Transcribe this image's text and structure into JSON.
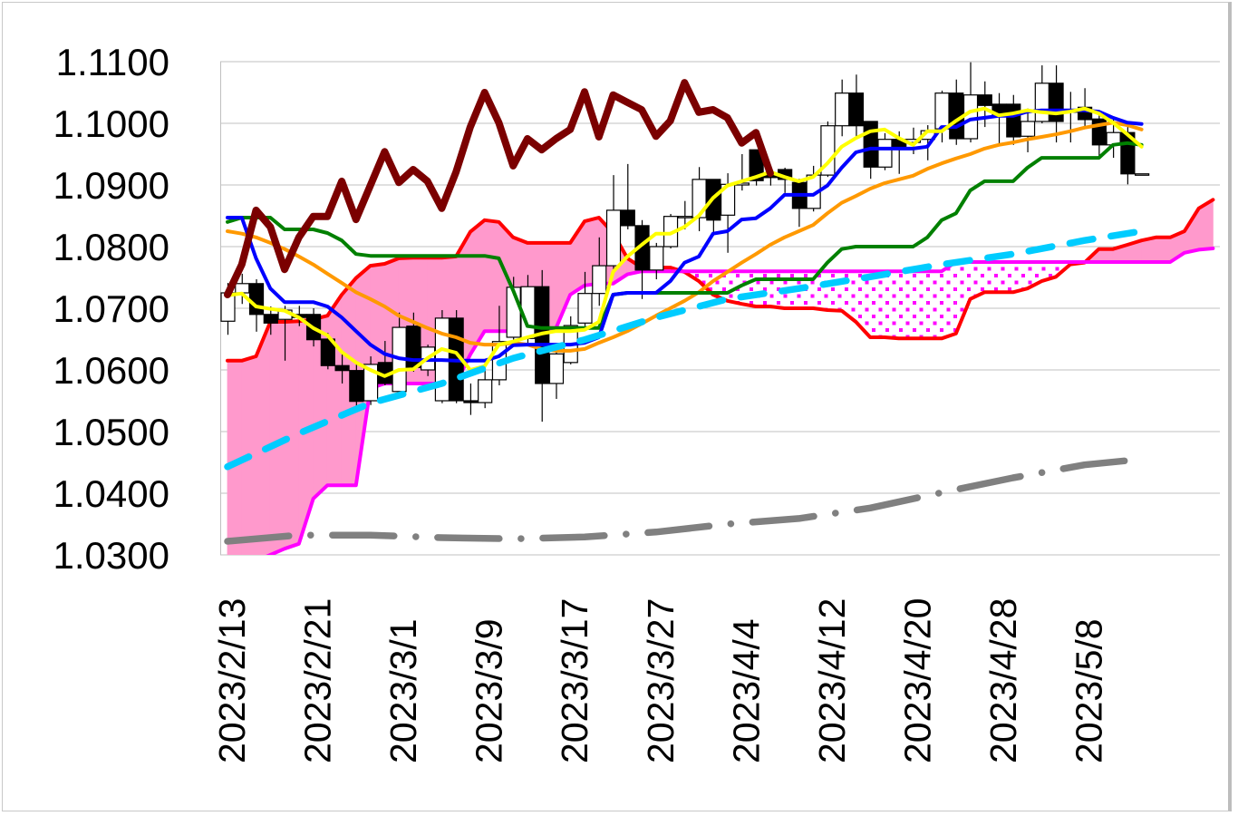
{
  "chart_data": {
    "type": "candlestick",
    "title": "",
    "xlabel": "",
    "ylabel": "",
    "ylim": [
      1.03,
      1.11
    ],
    "y_tick_step": 0.01,
    "y_tick_labels": [
      "1.1100",
      "1.1000",
      "1.0900",
      "1.0800",
      "1.0700",
      "1.0600",
      "1.0500",
      "1.0400",
      "1.0300"
    ],
    "x_tick_labels": [
      "2023/2/13",
      "2023/2/21",
      "2023/3/1",
      "2023/3/9",
      "2023/3/17",
      "2023/3/27",
      "2023/4/4",
      "2023/4/12",
      "2023/4/20",
      "2023/4/28",
      "2023/5/8"
    ],
    "x_tick_index": [
      0,
      6,
      12,
      18,
      24,
      30,
      36,
      42,
      48,
      54,
      60
    ],
    "grid": true,
    "legend": "none",
    "colors": {
      "bull_body": "#ffffff",
      "bear_body": "#000000",
      "cloud_bull": "#ff99cc",
      "cloud_bear_dots": "#ff00ff",
      "chikou": "#7b0000",
      "tenkan": "#0000ff",
      "kijun": "#008000",
      "fast_ma": "#ffff00",
      "mid_ma": "#ff9900",
      "senkou_a": "#ff0000",
      "senkou_b": "#ff00ff",
      "long_ma": "#00ccff",
      "longest_ma": "#808080",
      "grid": "#c0c0c0"
    },
    "candles_ohlc": [
      [
        1.0679,
        1.0741,
        1.0657,
        1.0725
      ],
      [
        1.0725,
        1.0756,
        1.0707,
        1.074
      ],
      [
        1.074,
        1.0747,
        1.0662,
        1.069
      ],
      [
        1.069,
        1.0703,
        1.0657,
        1.0676
      ],
      [
        1.0682,
        1.0704,
        1.0615,
        1.0697
      ],
      [
        1.069,
        1.0704,
        1.0671,
        1.0685
      ],
      [
        1.069,
        1.07,
        1.0638,
        1.0649
      ],
      [
        1.065,
        1.066,
        1.0601,
        1.0607
      ],
      [
        1.0607,
        1.0631,
        1.0578,
        1.0599
      ],
      [
        1.0599,
        1.0612,
        1.0535,
        1.0549
      ],
      [
        1.055,
        1.0622,
        1.0543,
        1.0609
      ],
      [
        1.0612,
        1.0647,
        1.0575,
        1.0578
      ],
      [
        1.0565,
        1.0693,
        1.056,
        1.0669
      ],
      [
        1.0671,
        1.0693,
        1.0597,
        1.0604
      ],
      [
        1.06,
        1.0641,
        1.059,
        1.0637
      ],
      [
        1.055,
        1.0697,
        1.0546,
        1.0684
      ],
      [
        1.0684,
        1.0697,
        1.0546,
        1.055
      ],
      [
        1.055,
        1.0578,
        1.0527,
        1.0547
      ],
      [
        1.0547,
        1.0607,
        1.0538,
        1.0584
      ],
      [
        1.0584,
        1.0704,
        1.0575,
        1.0646
      ],
      [
        1.0653,
        1.0751,
        1.0644,
        1.0734
      ],
      [
        1.0651,
        1.0754,
        1.0644,
        1.0735
      ],
      [
        1.0735,
        1.0762,
        1.0516,
        1.0578
      ],
      [
        1.0578,
        1.0634,
        1.0553,
        1.0626
      ],
      [
        1.0612,
        1.0687,
        1.0609,
        1.0672
      ],
      [
        1.0676,
        1.0759,
        1.0671,
        1.0724
      ],
      [
        1.0724,
        1.0815,
        1.0704,
        1.0769
      ],
      [
        1.0769,
        1.0916,
        1.0762,
        1.0859
      ],
      [
        1.0859,
        1.0934,
        1.0828,
        1.0834
      ],
      [
        1.0834,
        1.0843,
        1.0715,
        1.0762
      ],
      [
        1.0762,
        1.0806,
        1.0747,
        1.08
      ],
      [
        1.08,
        1.0853,
        1.0797,
        1.0849
      ],
      [
        1.0847,
        1.0874,
        1.0828,
        1.0849
      ],
      [
        1.0847,
        1.0929,
        1.0825,
        1.0909
      ],
      [
        1.0909,
        1.0909,
        1.0818,
        1.0843
      ],
      [
        1.0851,
        1.0919,
        1.079,
        1.0901
      ],
      [
        1.09,
        1.095,
        1.0891,
        1.0903
      ],
      [
        1.0957,
        1.0957,
        1.0899,
        1.0907
      ],
      [
        1.0916,
        1.0925,
        1.0899,
        1.0912
      ],
      [
        1.0925,
        1.0928,
        1.0887,
        1.0909
      ],
      [
        1.0904,
        1.091,
        1.0832,
        1.0862
      ],
      [
        1.0862,
        1.0931,
        1.0857,
        1.0916
      ],
      [
        1.0916,
        1.1003,
        1.0913,
        1.0996
      ],
      [
        1.0996,
        1.1071,
        1.0979,
        1.1049
      ],
      [
        1.1049,
        1.1079,
        1.0975,
        1.0996
      ],
      [
        1.1003,
        1.1003,
        1.091,
        1.0929
      ],
      [
        1.0929,
        1.0984,
        1.0924,
        1.0974
      ],
      [
        1.0974,
        1.0987,
        1.0918,
        1.096
      ],
      [
        1.0969,
        1.0993,
        1.095,
        1.0974
      ],
      [
        1.0974,
        1.0997,
        1.094,
        1.0988
      ],
      [
        1.0991,
        1.1053,
        1.0969,
        1.1049
      ],
      [
        1.1049,
        1.1071,
        1.0965,
        1.0975
      ],
      [
        1.0975,
        1.1099,
        1.0969,
        1.1046
      ],
      [
        1.1046,
        1.1068,
        1.0994,
        1.1029
      ],
      [
        1.1031,
        1.1049,
        1.0965,
        1.1012
      ],
      [
        1.1031,
        1.1046,
        1.0965,
        1.0978
      ],
      [
        1.0979,
        1.1024,
        1.0953,
        1.1003
      ],
      [
        1.1003,
        1.1094,
        1.1,
        1.1065
      ],
      [
        1.1065,
        1.1094,
        1.0969,
        1.1003
      ],
      [
        1.1021,
        1.1051,
        1.0969,
        1.1018
      ],
      [
        1.1026,
        1.1057,
        1.0994,
        1.1006
      ],
      [
        1.1007,
        1.1016,
        1.0943,
        1.0965
      ],
      [
        1.0965,
        1.1009,
        1.0944,
        1.0985
      ],
      [
        1.0985,
        1.0994,
        1.0901,
        1.0918
      ],
      [
        1.0918,
        1.0918,
        1.0918,
        1.0918
      ]
    ],
    "senkou_a": [
      1.0615,
      1.0615,
      1.0622,
      1.0678,
      1.0678,
      1.0679,
      1.0682,
      1.0688,
      1.0722,
      1.0749,
      1.0769,
      1.0772,
      1.0781,
      1.0782,
      1.0782,
      1.0782,
      1.0784,
      1.0824,
      1.0843,
      1.084,
      1.0815,
      1.0806,
      1.0806,
      1.0806,
      1.0806,
      1.0841,
      1.0847,
      1.0822,
      1.0781,
      1.0766,
      1.0766,
      1.0766,
      1.0759,
      1.0744,
      1.0722,
      1.0712,
      1.0707,
      1.0703,
      1.0703,
      1.07,
      1.07,
      1.07,
      1.0697,
      1.0696,
      1.0678,
      1.0653,
      1.0653,
      1.0651,
      1.0651,
      1.0651,
      1.0651,
      1.0659,
      1.0715,
      1.0726,
      1.0726,
      1.0726,
      1.0732,
      1.0744,
      1.0751,
      1.0771,
      1.0774,
      1.0796,
      1.0796,
      1.0803,
      1.081,
      1.0815,
      1.0815,
      1.0825,
      1.0862,
      1.0876
    ],
    "senkou_b": [
      1.029,
      1.029,
      1.029,
      1.03,
      1.031,
      1.0318,
      1.0391,
      1.0413,
      1.0413,
      1.0413,
      1.057,
      1.0578,
      1.0578,
      1.0578,
      1.0578,
      1.0578,
      1.0578,
      1.0625,
      1.0663,
      1.0663,
      1.0663,
      1.0663,
      1.0663,
      1.0668,
      1.0722,
      1.0737,
      1.074,
      1.074,
      1.0755,
      1.076,
      1.076,
      1.076,
      1.076,
      1.076,
      1.076,
      1.076,
      1.076,
      1.076,
      1.076,
      1.076,
      1.076,
      1.076,
      1.076,
      1.076,
      1.076,
      1.076,
      1.076,
      1.076,
      1.076,
      1.076,
      1.076,
      1.0775,
      1.0775,
      1.0775,
      1.0775,
      1.0775,
      1.0775,
      1.0775,
      1.0775,
      1.0775,
      1.0775,
      1.0775,
      1.0775,
      1.0775,
      1.0775,
      1.0775,
      1.0775,
      1.079,
      1.0795,
      1.0797
    ],
    "chikou": [
      1.0722,
      1.0771,
      1.0859,
      1.0832,
      1.0763,
      1.0815,
      1.0849,
      1.0849,
      1.0906,
      1.0844,
      1.0899,
      1.0954,
      1.0904,
      1.0925,
      1.0906,
      1.0862,
      1.0921,
      1.0994,
      1.105,
      1.1001,
      1.0931,
      1.0975,
      1.0957,
      1.0975,
      1.099,
      1.1051,
      1.0978,
      1.1046,
      1.1034,
      1.1022,
      1.0979,
      1.1004,
      1.1066,
      1.1018,
      1.1022,
      1.1009,
      1.0968,
      1.0985,
      1.0919
    ],
    "tenkan": [
      1.0847,
      1.0847,
      1.0781,
      1.0732,
      1.071,
      1.071,
      1.071,
      1.0703,
      1.0685,
      1.0663,
      1.0641,
      1.0626,
      1.0619,
      1.0616,
      1.0616,
      1.0616,
      1.0615,
      1.0615,
      1.0615,
      1.0622,
      1.064,
      1.0641,
      1.0641,
      1.0641,
      1.0641,
      1.0644,
      1.0653,
      1.0722,
      1.0725,
      1.0725,
      1.0725,
      1.0744,
      1.0774,
      1.0784,
      1.0821,
      1.0825,
      1.0844,
      1.0846,
      1.0862,
      1.0884,
      1.0884,
      1.0884,
      1.0899,
      1.0928,
      1.0953,
      1.0959,
      1.0959,
      1.0959,
      1.0959,
      1.0962,
      1.0994,
      1.0994,
      1.1006,
      1.1009,
      1.1012,
      1.1012,
      1.1019,
      1.1021,
      1.1021,
      1.1021,
      1.1021,
      1.1019,
      1.1009,
      1.1001,
      1.0999
    ],
    "fast_ma": [
      1.0721,
      1.0724,
      1.0703,
      1.0699,
      1.0696,
      1.0685,
      1.0668,
      1.0656,
      1.0629,
      1.0612,
      1.06,
      1.059,
      1.06,
      1.0601,
      1.0619,
      1.0634,
      1.0628,
      1.06,
      1.0606,
      1.0641,
      1.0646,
      1.0653,
      1.0659,
      1.0663,
      1.0663,
      1.0665,
      1.0678,
      1.0759,
      1.0784,
      1.0803,
      1.0821,
      1.0821,
      1.0832,
      1.085,
      1.0879,
      1.0899,
      1.0906,
      1.0913,
      1.0921,
      1.0913,
      1.0906,
      1.0913,
      1.0935,
      1.0962,
      1.0976,
      1.0987,
      1.099,
      1.0976,
      1.0965,
      1.0987,
      1.0987,
      1.1004,
      1.1019,
      1.1024,
      1.1013,
      1.1016,
      1.1021,
      1.1018,
      1.1016,
      1.1019,
      1.1024,
      1.1016,
      1.1001,
      1.0982,
      1.0962
    ],
    "kijun": [
      1.084,
      1.0847,
      1.0847,
      1.0847,
      1.0828,
      1.0828,
      1.0828,
      1.0822,
      1.081,
      1.0788,
      1.0785,
      1.0785,
      1.0785,
      1.0785,
      1.0785,
      1.0785,
      1.0785,
      1.0785,
      1.0785,
      1.0781,
      1.0729,
      1.0671,
      1.0668,
      1.0668,
      1.0668,
      1.0668,
      1.0668,
      1.0722,
      1.0725,
      1.0725,
      1.0725,
      1.0725,
      1.0725,
      1.0725,
      1.0725,
      1.0725,
      1.0737,
      1.0747,
      1.0747,
      1.0747,
      1.0747,
      1.0747,
      1.0774,
      1.0796,
      1.08,
      1.08,
      1.08,
      1.08,
      1.08,
      1.0815,
      1.0843,
      1.0854,
      1.0891,
      1.0906,
      1.0906,
      1.0906,
      1.0928,
      1.0944,
      1.0944,
      1.0944,
      1.0944,
      1.0944,
      1.0965,
      1.0968,
      1.0965
    ],
    "mid_ma": [
      1.0825,
      1.0821,
      1.0815,
      1.0806,
      1.0796,
      1.0784,
      1.0771,
      1.0756,
      1.0741,
      1.0726,
      1.0715,
      1.0703,
      1.0688,
      1.0678,
      1.0668,
      1.0659,
      1.0653,
      1.0644,
      1.0641,
      1.0641,
      1.0644,
      1.0641,
      1.0634,
      1.0631,
      1.0631,
      1.0634,
      1.0644,
      1.0653,
      1.0663,
      1.0675,
      1.0688,
      1.07,
      1.0712,
      1.0726,
      1.0744,
      1.0759,
      1.0774,
      1.0788,
      1.0803,
      1.0815,
      1.0825,
      1.0835,
      1.0854,
      1.0871,
      1.0882,
      1.0894,
      1.0903,
      1.0909,
      1.0915,
      1.0926,
      1.0935,
      1.0943,
      1.095,
      1.0959,
      1.0965,
      1.0969,
      1.0974,
      1.0978,
      1.0982,
      1.0987,
      1.0993,
      1.0997,
      1.1001,
      1.0997,
      1.099
    ],
    "long_ma_points": [
      [
        0,
        1.0443
      ],
      [
        5,
        1.0497
      ],
      [
        10,
        1.0546
      ],
      [
        15,
        1.0578
      ],
      [
        20,
        1.0619
      ],
      [
        25,
        1.0649
      ],
      [
        30,
        1.0685
      ],
      [
        35,
        1.0715
      ],
      [
        40,
        1.0732
      ],
      [
        45,
        1.0751
      ],
      [
        50,
        1.0771
      ],
      [
        55,
        1.0788
      ],
      [
        60,
        1.081
      ],
      [
        64,
        1.0825
      ]
    ],
    "longest_ma_points": [
      [
        0,
        1.0322
      ],
      [
        5,
        1.0332
      ],
      [
        10,
        1.0332
      ],
      [
        15,
        1.0328
      ],
      [
        20,
        1.0326
      ],
      [
        25,
        1.0329
      ],
      [
        30,
        1.0337
      ],
      [
        35,
        1.035
      ],
      [
        40,
        1.0359
      ],
      [
        45,
        1.0376
      ],
      [
        50,
        1.0401
      ],
      [
        55,
        1.0425
      ],
      [
        60,
        1.0446
      ],
      [
        63,
        1.0453
      ]
    ]
  }
}
